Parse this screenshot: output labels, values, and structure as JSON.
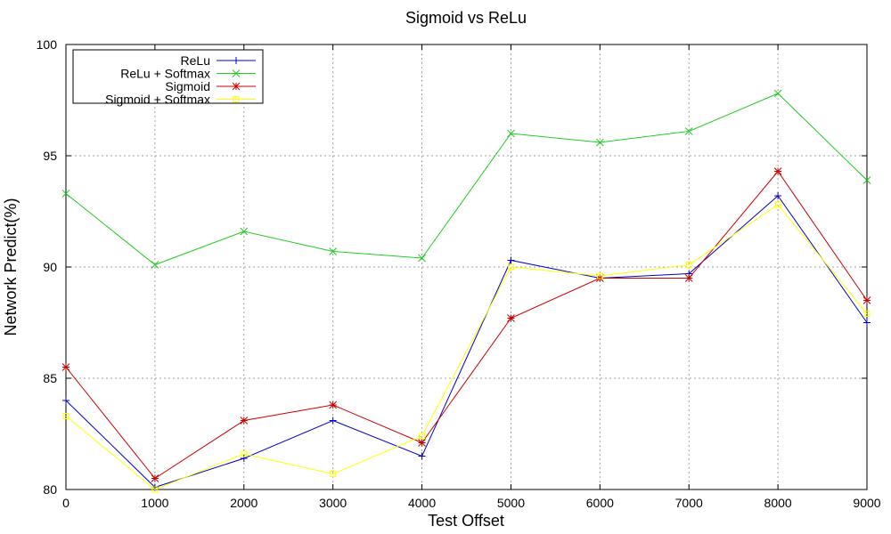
{
  "chart_data": {
    "type": "line",
    "title": "Sigmoid vs ReLu",
    "xlabel": "Test Offset",
    "ylabel": "Network Predict(%)",
    "x": [
      0,
      1000,
      2000,
      3000,
      4000,
      5000,
      6000,
      7000,
      8000,
      9000
    ],
    "xlim": [
      0,
      9000
    ],
    "ylim": [
      80,
      100
    ],
    "xticks": [
      0,
      1000,
      2000,
      3000,
      4000,
      5000,
      6000,
      7000,
      8000,
      9000
    ],
    "yticks": [
      80,
      85,
      90,
      95,
      100
    ],
    "grid": true,
    "legend_position": "top-left",
    "series": [
      {
        "name": "ReLu",
        "color": "#0000cc",
        "marker": "plus",
        "values": [
          84.0,
          80.1,
          81.4,
          83.1,
          81.5,
          90.3,
          89.5,
          89.7,
          93.2,
          87.5
        ]
      },
      {
        "name": "ReLu + Softmax",
        "color": "#22cc22",
        "marker": "cross",
        "values": [
          93.3,
          90.1,
          91.6,
          90.7,
          90.4,
          96.0,
          95.6,
          96.1,
          97.8,
          93.9
        ]
      },
      {
        "name": "Sigmoid",
        "color": "#cc0000",
        "marker": "star",
        "values": [
          85.5,
          80.5,
          83.1,
          83.8,
          82.1,
          87.7,
          89.5,
          89.5,
          94.3,
          88.5
        ]
      },
      {
        "name": "Sigmoid + Softmax",
        "color": "#ffff00",
        "marker": "square",
        "values": [
          83.3,
          80.0,
          81.6,
          80.7,
          82.4,
          90.0,
          89.6,
          90.1,
          92.8,
          87.9
        ]
      }
    ]
  }
}
